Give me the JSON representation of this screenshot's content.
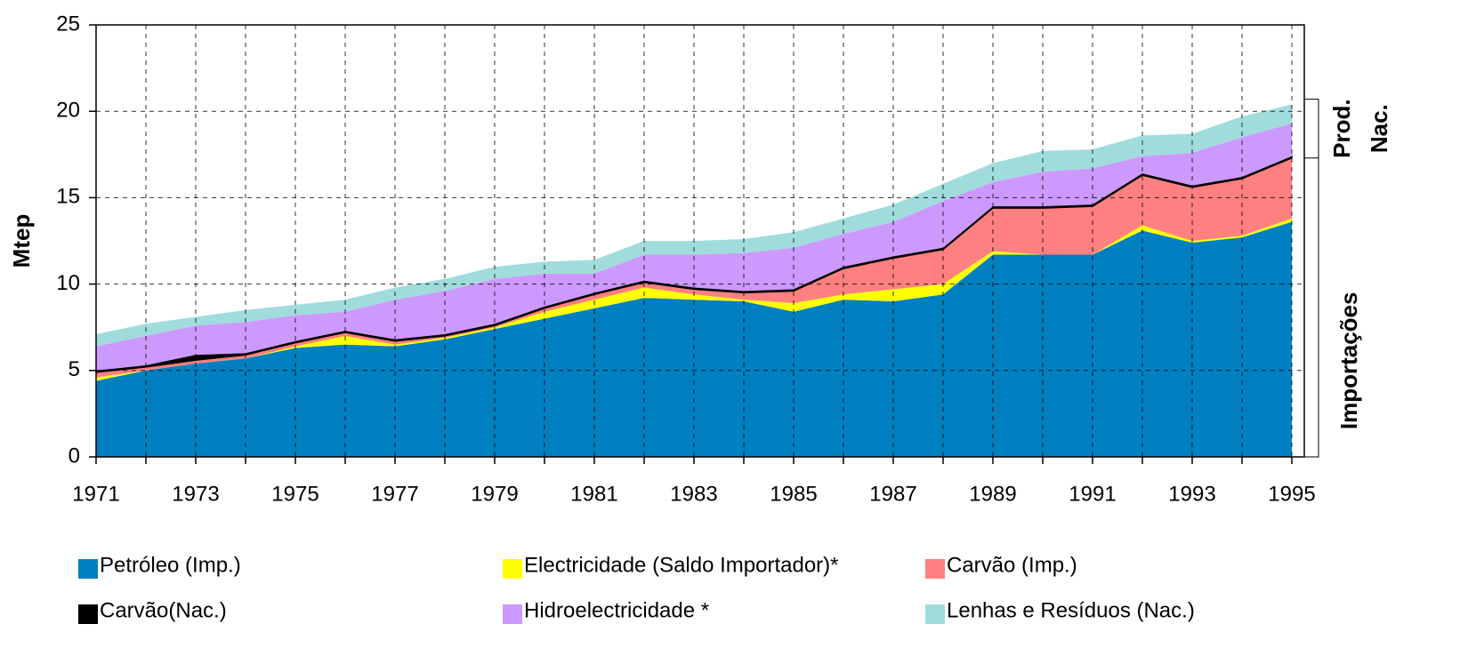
{
  "chart_data": {
    "type": "stacked-area",
    "y_label": "Mtep",
    "x": [
      1971,
      1972,
      1973,
      1974,
      1975,
      1976,
      1977,
      1978,
      1979,
      1980,
      1981,
      1982,
      1983,
      1984,
      1985,
      1986,
      1987,
      1988,
      1989,
      1990,
      1991,
      1992,
      1993,
      1994,
      1995
    ],
    "xlim": [
      1971,
      1995
    ],
    "xticks": [
      1971,
      1973,
      1975,
      1977,
      1979,
      1981,
      1983,
      1985,
      1987,
      1989,
      1991,
      1993,
      1995
    ],
    "ylim": [
      0,
      25
    ],
    "yticks": [
      0,
      5,
      10,
      15,
      20,
      25
    ],
    "grid": true,
    "series": [
      {
        "name": "Petróleo (Imp.)",
        "color": "#0080c0",
        "values": [
          4.4,
          5.0,
          5.4,
          5.7,
          6.3,
          6.5,
          6.4,
          6.8,
          7.4,
          8.0,
          8.6,
          9.2,
          9.1,
          9.0,
          8.4,
          9.1,
          9.0,
          9.4,
          11.7,
          11.7,
          11.7,
          13.1,
          12.4,
          12.7,
          13.6
        ]
      },
      {
        "name": "Electricidade (Saldo Importador)*",
        "color": "#ffff00",
        "values": [
          0.2,
          0,
          0,
          0,
          0.1,
          0.5,
          0.1,
          0.1,
          0.1,
          0.4,
          0.5,
          0.6,
          0.3,
          0.1,
          0.5,
          0.3,
          0.7,
          0.6,
          0.2,
          0,
          0,
          0.3,
          0.1,
          0.1,
          0.2
        ]
      },
      {
        "name": "Carvão (Imp.)",
        "color": "#ff8080",
        "values": [
          0.3,
          0.2,
          0.2,
          0.2,
          0.2,
          0.2,
          0.2,
          0.1,
          0.1,
          0.2,
          0.3,
          0.3,
          0.3,
          0.4,
          0.7,
          1.5,
          1.8,
          2.0,
          2.5,
          2.7,
          2.8,
          2.9,
          3.1,
          3.3,
          3.5
        ]
      },
      {
        "name": "Carvão(Nac.)",
        "color": "#000000",
        "values": [
          0.1,
          0.1,
          0.3,
          0.1,
          0.1,
          0.1,
          0.1,
          0.1,
          0.1,
          0.1,
          0.1,
          0.1,
          0.1,
          0.1,
          0.1,
          0.1,
          0.1,
          0.1,
          0.1,
          0.1,
          0.1,
          0.1,
          0.1,
          0.1,
          0.1
        ]
      },
      {
        "name": "Hidroelectricidade *",
        "color": "#cc99ff",
        "values": [
          1.4,
          1.7,
          1.7,
          1.8,
          1.5,
          1.1,
          2.3,
          2.5,
          2.6,
          1.9,
          1.1,
          1.5,
          1.9,
          2.2,
          2.4,
          1.9,
          2.0,
          2.7,
          1.4,
          2.0,
          2.1,
          1.0,
          1.9,
          2.3,
          1.9
        ]
      },
      {
        "name": "Lenhas e Resíduos (Nac.)",
        "color": "#a0dcdc",
        "values": [
          0.7,
          0.7,
          0.5,
          0.7,
          0.6,
          0.7,
          0.7,
          0.7,
          0.7,
          0.7,
          0.8,
          0.8,
          0.8,
          0.8,
          0.9,
          0.9,
          1.0,
          1.0,
          1.1,
          1.2,
          1.1,
          1.2,
          1.1,
          1.2,
          1.1
        ]
      }
    ],
    "annotations": [
      "Prod.",
      "Nac.",
      "Importações"
    ]
  }
}
